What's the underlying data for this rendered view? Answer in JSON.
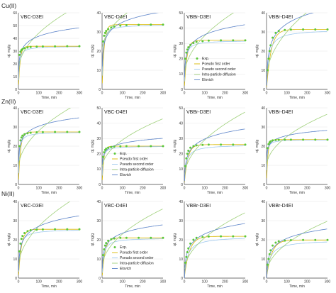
{
  "figure": {
    "row_labels": [
      "Cu(II)",
      "Zn(II)",
      "Ni(II)"
    ],
    "x_axis_label": "Time, min",
    "y_axis_label": "qt, mg/g",
    "legend": [
      "Exp.",
      "Pseudo first order",
      "Pseudo second order",
      "Intra-particle diffusion",
      "Elovich"
    ],
    "colors": {
      "exp": "#5cc83a",
      "pfo": "#d8b800",
      "pso": "#9ec8ee",
      "ipd": "#9fd07a",
      "elovich": "#5a82c8",
      "axis": "#444444",
      "grid": "#e6e6e6"
    }
  },
  "chart_data": [
    {
      "ion": "Cu(II)",
      "title": "VBC-D3EI",
      "type": "scatter",
      "xlim": [
        0,
        300
      ],
      "ylim": [
        0,
        60
      ],
      "yticks": [
        0,
        10,
        20,
        30,
        40,
        50,
        60
      ],
      "xticks": [
        0,
        100,
        200,
        300
      ],
      "xlabel": "Time, min",
      "ylabel": "qt, mg/g",
      "legend": "none",
      "x": [
        5,
        10,
        15,
        20,
        30,
        45,
        60,
        90,
        120,
        180,
        240,
        300
      ],
      "y": [
        27,
        29.5,
        30.8,
        31.5,
        32.3,
        32.8,
        33.2,
        33.5,
        33.6,
        33.7,
        33.8,
        33.8
      ],
      "model": {
        "qe": 33.8,
        "k1": 0.12,
        "k2": 0.008,
        "kid": 3.0,
        "cid": 14,
        "ea": 6,
        "eb": 14
      }
    },
    {
      "ion": "Cu(II)",
      "title": "VBC-D4EI",
      "type": "scatter",
      "xlim": [
        0,
        300
      ],
      "ylim": [
        0,
        40
      ],
      "yticks": [
        0,
        10,
        20,
        30,
        40
      ],
      "xticks": [
        0,
        100,
        200,
        300
      ],
      "xlabel": "Time, min",
      "ylabel": "qt, mg/g",
      "legend": "none",
      "x": [
        5,
        10,
        15,
        20,
        30,
        45,
        60,
        90,
        120,
        180,
        240,
        300
      ],
      "y": [
        25,
        28,
        29.5,
        30.5,
        31.5,
        32.3,
        32.8,
        33.3,
        33.5,
        33.7,
        33.8,
        33.8
      ],
      "model": {
        "qe": 33.8,
        "k1": 0.1,
        "k2": 0.008,
        "kid": 1.8,
        "cid": 20,
        "ea": 5,
        "eb": 12
      }
    },
    {
      "ion": "Cu(II)",
      "title": "VBBr-D3EI",
      "type": "scatter",
      "xlim": [
        0,
        300
      ],
      "ylim": [
        0,
        50
      ],
      "yticks": [
        0,
        10,
        20,
        30,
        40,
        50
      ],
      "xticks": [
        0,
        100,
        200,
        300
      ],
      "xlabel": "Time, min",
      "ylabel": "qt, mg/g",
      "legend": "bottom-right",
      "x": [
        5,
        10,
        15,
        20,
        30,
        45,
        60,
        90,
        120,
        180,
        240,
        300
      ],
      "y": [
        20,
        24,
        26,
        27.5,
        29,
        30.3,
        31,
        31.5,
        31.8,
        32,
        32,
        32
      ],
      "model": {
        "qe": 32,
        "k1": 0.08,
        "k2": 0.006,
        "kid": 2.7,
        "cid": 8,
        "ea": 6,
        "eb": 8
      }
    },
    {
      "ion": "Cu(II)",
      "title": "VBBr-D4EI",
      "type": "scatter",
      "xlim": [
        0,
        300
      ],
      "ylim": [
        0,
        40
      ],
      "yticks": [
        0,
        10,
        20,
        30,
        40
      ],
      "xticks": [
        0,
        100,
        200,
        300
      ],
      "xlabel": "Time, min",
      "ylabel": "qt, mg/g",
      "legend": "none",
      "x": [
        5,
        10,
        15,
        20,
        30,
        45,
        60,
        90,
        120,
        180,
        240,
        300
      ],
      "y": [
        10,
        16,
        20,
        23,
        27,
        29.5,
        30.5,
        31,
        31.2,
        31.3,
        31.3,
        31.3
      ],
      "model": {
        "qe": 31.3,
        "k1": 0.045,
        "k2": 0.003,
        "kid": 2.5,
        "cid": 5,
        "ea": 7,
        "eb": 2
      }
    },
    {
      "ion": "Zn(II)",
      "title": "VBC-D3EI",
      "type": "scatter",
      "xlim": [
        0,
        300
      ],
      "ylim": [
        0,
        40
      ],
      "yticks": [
        0,
        10,
        20,
        30,
        40
      ],
      "xticks": [
        0,
        100,
        200,
        300
      ],
      "xlabel": "Time, min",
      "ylabel": "qt, mg/g",
      "legend": "none",
      "x": [
        5,
        10,
        15,
        20,
        30,
        45,
        60,
        90,
        120,
        180,
        240,
        300
      ],
      "y": [
        20,
        23,
        24.5,
        25.5,
        26.2,
        26.7,
        27,
        27.2,
        27.3,
        27.4,
        27.4,
        27.4
      ],
      "model": {
        "qe": 27.4,
        "k1": 0.1,
        "k2": 0.01,
        "kid": 2.0,
        "cid": 8,
        "ea": 4,
        "eb": 12
      }
    },
    {
      "ion": "Zn(II)",
      "title": "VBC-D4EI",
      "type": "scatter",
      "xlim": [
        0,
        300
      ],
      "ylim": [
        0,
        50
      ],
      "yticks": [
        0,
        10,
        20,
        30,
        40,
        50
      ],
      "xticks": [
        0,
        100,
        200,
        300
      ],
      "xlabel": "Time, min",
      "ylabel": "qt, mg/g",
      "legend": "bottom-right",
      "x": [
        5,
        10,
        15,
        20,
        30,
        45,
        60,
        90,
        120,
        180,
        240,
        300
      ],
      "y": [
        18,
        21,
        22.5,
        23.3,
        24,
        24.4,
        24.7,
        24.9,
        25,
        25,
        25,
        25
      ],
      "model": {
        "qe": 25,
        "k1": 0.12,
        "k2": 0.012,
        "kid": 1.9,
        "cid": 10,
        "ea": 3,
        "eb": 13
      }
    },
    {
      "ion": "Zn(II)",
      "title": "VBBr-D3EI",
      "type": "scatter",
      "xlim": [
        0,
        300
      ],
      "ylim": [
        0,
        50
      ],
      "yticks": [
        0,
        10,
        20,
        30,
        40,
        50
      ],
      "xticks": [
        0,
        100,
        200,
        300
      ],
      "xlabel": "Time, min",
      "ylabel": "qt, mg/g",
      "legend": "none",
      "x": [
        5,
        10,
        15,
        20,
        30,
        45,
        60,
        90,
        120,
        180,
        240,
        300
      ],
      "y": [
        12,
        17,
        20,
        22,
        24,
        25,
        25.5,
        25.8,
        26,
        26,
        26,
        26
      ],
      "model": {
        "qe": 26,
        "k1": 0.06,
        "k2": 0.004,
        "kid": 2.5,
        "cid": 4,
        "ea": 6,
        "eb": 2
      }
    },
    {
      "ion": "Zn(II)",
      "title": "VBBr-D4EI",
      "type": "scatter",
      "xlim": [
        0,
        300
      ],
      "ylim": [
        0,
        40
      ],
      "yticks": [
        0,
        10,
        20,
        30,
        40
      ],
      "xticks": [
        0,
        100,
        200,
        300
      ],
      "xlabel": "Time, min",
      "ylabel": "qt, mg/g",
      "legend": "none",
      "x": [
        5,
        10,
        15,
        20,
        30,
        45,
        60,
        90,
        120,
        180,
        240,
        300
      ],
      "y": [
        19,
        21,
        22,
        22.5,
        23,
        23.2,
        23.3,
        23.4,
        23.4,
        23.4,
        23.4,
        23.4
      ],
      "model": {
        "qe": 23.4,
        "k1": 0.15,
        "k2": 0.02,
        "kid": 1.6,
        "cid": 9,
        "ea": 2.5,
        "eb": 14
      }
    },
    {
      "ion": "Ni(II)",
      "title": "VBC-D3EI",
      "type": "scatter",
      "xlim": [
        0,
        300
      ],
      "ylim": [
        0,
        40
      ],
      "yticks": [
        0,
        10,
        20,
        30,
        40
      ],
      "xticks": [
        0,
        100,
        200,
        300
      ],
      "xlabel": "Time, min",
      "ylabel": "qt, mg/g",
      "legend": "none",
      "x": [
        5,
        10,
        15,
        20,
        30,
        45,
        60,
        90,
        120,
        180,
        240,
        300
      ],
      "y": [
        14,
        18,
        20.5,
        22,
        23.5,
        24.5,
        25,
        25.3,
        25.4,
        25.5,
        25.5,
        25.5
      ],
      "model": {
        "qe": 25.5,
        "k1": 0.07,
        "k2": 0.006,
        "kid": 2.2,
        "cid": 5,
        "ea": 5,
        "eb": 4
      }
    },
    {
      "ion": "Ni(II)",
      "title": "VBC-D4EI",
      "type": "scatter",
      "xlim": [
        0,
        300
      ],
      "ylim": [
        0,
        40
      ],
      "yticks": [
        0,
        10,
        20,
        30,
        40
      ],
      "xticks": [
        0,
        100,
        200,
        300
      ],
      "xlabel": "Time, min",
      "ylabel": "qt, mg/g",
      "legend": "bottom-right",
      "x": [
        5,
        10,
        15,
        20,
        30,
        45,
        60,
        90,
        120,
        180,
        240,
        300
      ],
      "y": [
        12,
        15,
        17,
        18.3,
        19.5,
        20.3,
        20.7,
        21,
        21,
        21,
        21,
        21
      ],
      "model": {
        "qe": 21,
        "k1": 0.07,
        "k2": 0.007,
        "kid": 1.8,
        "cid": 5,
        "ea": 4,
        "eb": 5
      }
    },
    {
      "ion": "Ni(II)",
      "title": "VBBr-D3EI",
      "type": "scatter",
      "xlim": [
        0,
        300
      ],
      "ylim": [
        0,
        40
      ],
      "yticks": [
        0,
        10,
        20,
        30,
        40
      ],
      "xticks": [
        0,
        100,
        200,
        300
      ],
      "xlabel": "Time, min",
      "ylabel": "qt, mg/g",
      "legend": "none",
      "x": [
        5,
        10,
        15,
        20,
        30,
        45,
        60,
        90,
        120,
        180,
        240,
        300
      ],
      "y": [
        8,
        11,
        13.5,
        15.5,
        18,
        20,
        21,
        21.5,
        21.7,
        21.8,
        21.8,
        21.8
      ],
      "model": {
        "qe": 21.8,
        "k1": 0.04,
        "k2": 0.003,
        "kid": 1.8,
        "cid": 3,
        "ea": 5,
        "eb": 0
      }
    },
    {
      "ion": "Ni(II)",
      "title": "VBBr-D4EI",
      "type": "scatter",
      "xlim": [
        0,
        300
      ],
      "ylim": [
        0,
        40
      ],
      "yticks": [
        0,
        10,
        20,
        30,
        40
      ],
      "xticks": [
        0,
        100,
        200,
        300
      ],
      "xlabel": "Time, min",
      "ylabel": "qt, mg/g",
      "legend": "none",
      "x": [
        5,
        10,
        15,
        20,
        30,
        45,
        60,
        90,
        120,
        180,
        240,
        300
      ],
      "y": [
        7,
        10,
        12.5,
        14.5,
        17,
        18.5,
        19.2,
        19.6,
        19.8,
        19.9,
        19.9,
        19.9
      ],
      "model": {
        "qe": 19.9,
        "k1": 0.04,
        "k2": 0.003,
        "kid": 1.6,
        "cid": 2,
        "ea": 4.5,
        "eb": 0
      }
    }
  ]
}
